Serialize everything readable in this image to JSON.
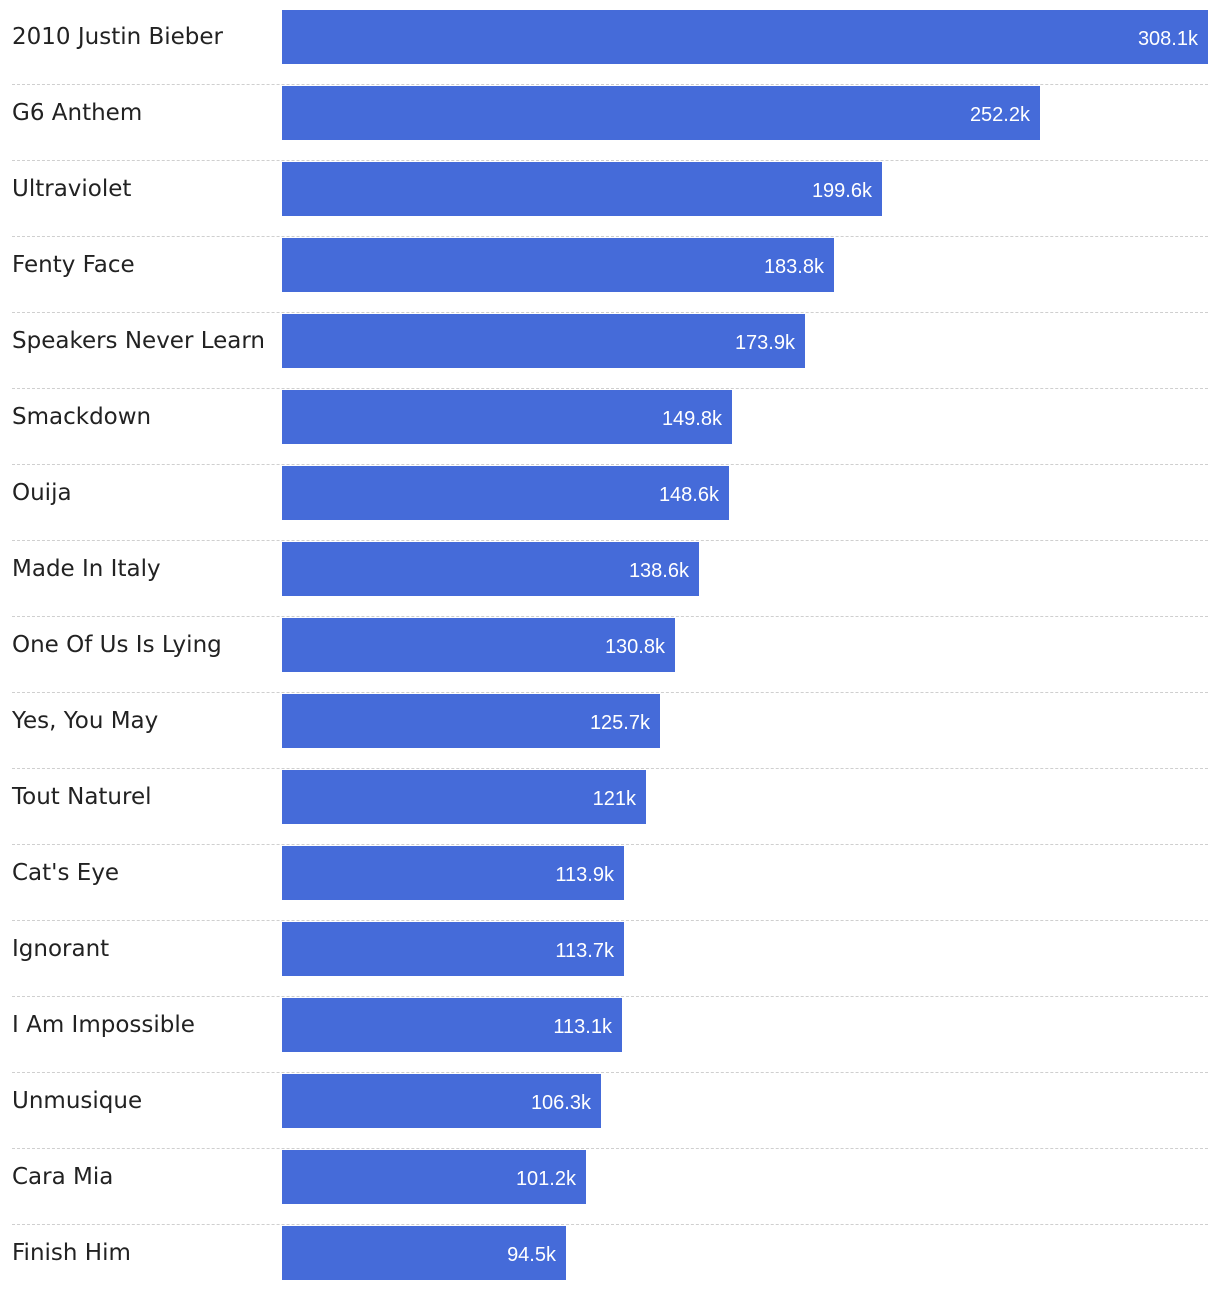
{
  "chart_data": {
    "type": "bar",
    "orientation": "horizontal",
    "categories": [
      "2010 Justin Bieber",
      "G6 Anthem",
      "Ultraviolet",
      "Fenty Face",
      "Speakers Never Learn",
      "Smackdown",
      "Ouija",
      "Made In Italy",
      "One Of Us Is Lying",
      "Yes, You May",
      "Tout Naturel",
      "Cat's Eye",
      "Ignorant",
      "I Am Impossible",
      "Unmusique",
      "Cara Mia",
      "Finish Him"
    ],
    "values": [
      308.1,
      252.2,
      199.6,
      183.8,
      173.9,
      149.8,
      148.6,
      138.6,
      130.8,
      125.7,
      121,
      113.9,
      113.7,
      113.1,
      106.3,
      101.2,
      94.5
    ],
    "value_labels": [
      "308.1k",
      "252.2k",
      "199.6k",
      "183.8k",
      "173.9k",
      "149.8k",
      "148.6k",
      "138.6k",
      "130.8k",
      "125.7k",
      "121k",
      "113.9k",
      "113.7k",
      "113.1k",
      "106.3k",
      "101.2k",
      "94.5k"
    ],
    "unit": "thousands",
    "xlim": [
      0,
      308.1
    ],
    "title": "",
    "xlabel": "",
    "ylabel": "",
    "grid": false,
    "legend": "none",
    "colors": {
      "bar": "#456bd9",
      "label_text": "#222222",
      "value_text": "#ffffff",
      "separator": "#cfcfcf"
    }
  }
}
